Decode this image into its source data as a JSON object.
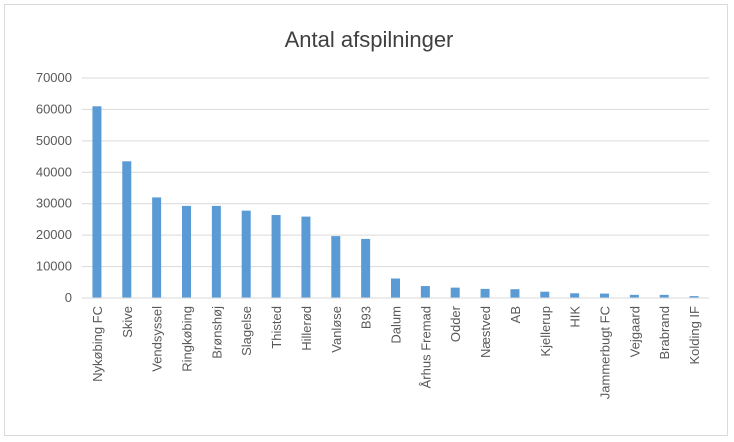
{
  "chart_data": {
    "type": "bar",
    "title": "Antal afspilninger",
    "xlabel": "",
    "ylabel": "",
    "ylim": [
      0,
      70000
    ],
    "yticks": [
      0,
      10000,
      20000,
      30000,
      40000,
      50000,
      60000,
      70000
    ],
    "grid": true,
    "legend": "none",
    "bar_color": "#5b9bd5",
    "categories": [
      "Nykøbing FC",
      "Skive",
      "Vendsyssel",
      "Ringkøbing",
      "Brønshøj",
      "Slagelse",
      "Thisted",
      "Hillerød",
      "Vanløse",
      "B93",
      "Dalum",
      "Århus Fremad",
      "Odder",
      "Næstved",
      "AB",
      "Kjellerup",
      "HIK",
      "Jammerbugt FC",
      "Vejgaard",
      "Brabrand",
      "Kolding IF"
    ],
    "values": [
      61000,
      43500,
      32000,
      29300,
      29300,
      27800,
      26400,
      25900,
      19700,
      18800,
      6200,
      3800,
      3300,
      2900,
      2800,
      2000,
      1500,
      1400,
      1000,
      1000,
      600
    ]
  }
}
